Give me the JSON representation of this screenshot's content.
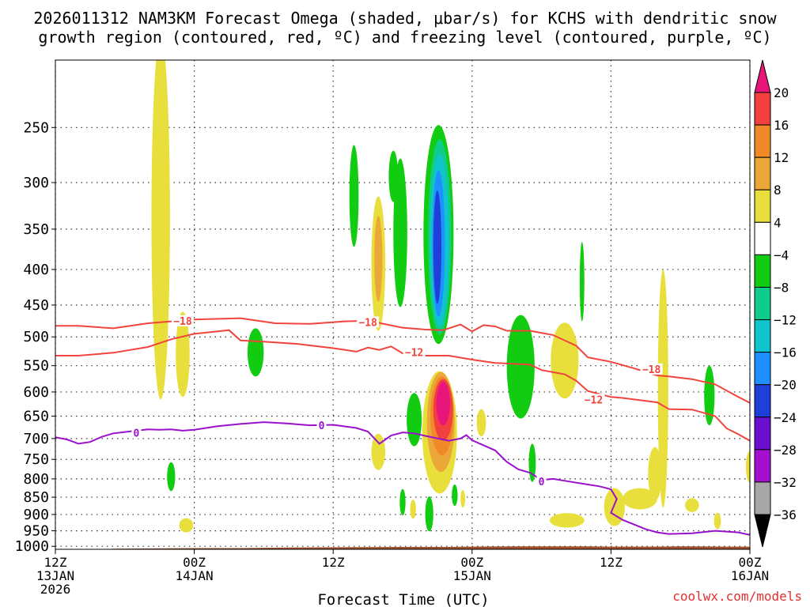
{
  "chart_data": {
    "type": "heatmap",
    "title_lines": [
      "2026011312 NAM3KM Forecast Omega (shaded, μbar/s) for KCHS with dendritic snow",
      "growth region (contoured, red, ºC) and freezing level (contoured, purple, ºC)"
    ],
    "xlabel": "Forecast Time (UTC)",
    "ylabel": "",
    "x_forecast_hours": [
      0,
      60
    ],
    "y_pressure_hPa": [
      1010,
      200
    ],
    "yticks": [
      250,
      300,
      350,
      400,
      450,
      500,
      550,
      600,
      650,
      700,
      750,
      800,
      850,
      900,
      950,
      1000
    ],
    "xticks": [
      {
        "hour": 0,
        "lines": [
          "12Z",
          "13JAN",
          "2026"
        ]
      },
      {
        "hour": 12,
        "lines": [
          "00Z",
          "14JAN"
        ]
      },
      {
        "hour": 24,
        "lines": [
          "12Z"
        ]
      },
      {
        "hour": 36,
        "lines": [
          "00Z",
          "15JAN"
        ]
      },
      {
        "hour": 48,
        "lines": [
          "12Z"
        ]
      },
      {
        "hour": 60,
        "lines": [
          "00Z",
          "16JAN"
        ]
      }
    ],
    "colorbar": {
      "levels": [
        "20",
        "16",
        "12",
        "8",
        "4",
        "−4",
        "−8",
        "−12",
        "−16",
        "−20",
        "−24",
        "−28",
        "−32",
        "−36"
      ],
      "colors": [
        "#e8157a",
        "#f24040",
        "#f08a28",
        "#eba838",
        "#e8df3c",
        "#ffffff",
        "#11cc11",
        "#0fcc8a",
        "#0fc4cc",
        "#1e90ff",
        "#1f3fd9",
        "#6a0fd0",
        "#a40fd0",
        "#a8a8a8",
        "#000000"
      ]
    },
    "contours": [
      {
        "name": "dgz-minus18",
        "color": "#f0443c",
        "label": "−18",
        "points": [
          [
            0,
            482
          ],
          [
            2,
            482
          ],
          [
            5,
            486
          ],
          [
            8,
            478
          ],
          [
            12,
            472
          ],
          [
            16,
            470
          ],
          [
            19,
            478
          ],
          [
            22,
            479
          ],
          [
            25,
            475
          ],
          [
            27,
            474
          ],
          [
            30,
            485
          ],
          [
            32,
            488
          ],
          [
            33.5,
            489
          ],
          [
            35,
            480
          ],
          [
            36,
            491
          ],
          [
            37,
            481
          ],
          [
            38,
            483
          ],
          [
            39,
            490
          ],
          [
            41,
            490
          ],
          [
            43,
            497
          ],
          [
            45,
            515
          ],
          [
            46,
            535
          ],
          [
            48,
            543
          ],
          [
            50,
            555
          ],
          [
            52,
            568
          ],
          [
            53,
            570
          ],
          [
            55,
            575
          ],
          [
            57,
            585
          ],
          [
            59,
            610
          ],
          [
            60,
            622
          ]
        ],
        "label_at": [
          [
            11,
            474
          ],
          [
            27,
            476
          ],
          [
            51.5,
            556
          ]
        ]
      },
      {
        "name": "dgz-minus12",
        "color": "#f0443c",
        "label": "−12",
        "points": [
          [
            0,
            532
          ],
          [
            2,
            532
          ],
          [
            5,
            527
          ],
          [
            8,
            517
          ],
          [
            10,
            504
          ],
          [
            12,
            495
          ],
          [
            15,
            489
          ],
          [
            16,
            506
          ],
          [
            18,
            508
          ],
          [
            21,
            512
          ],
          [
            24,
            519
          ],
          [
            26,
            525
          ],
          [
            27,
            518
          ],
          [
            28,
            522
          ],
          [
            29,
            516
          ],
          [
            30,
            528
          ],
          [
            31,
            524
          ],
          [
            32,
            532
          ],
          [
            34,
            532
          ],
          [
            36,
            539
          ],
          [
            38,
            545
          ],
          [
            41,
            548
          ],
          [
            42,
            558
          ],
          [
            44,
            566
          ],
          [
            45,
            578
          ],
          [
            46,
            598
          ],
          [
            48,
            610
          ],
          [
            49,
            612
          ],
          [
            50,
            615
          ],
          [
            51,
            618
          ],
          [
            52,
            621
          ],
          [
            53,
            635
          ],
          [
            55,
            636
          ],
          [
            57,
            650
          ],
          [
            58,
            677
          ],
          [
            59,
            690
          ],
          [
            60,
            705
          ]
        ],
        "label_at": [
          [
            31,
            526
          ],
          [
            46.5,
            615
          ]
        ]
      },
      {
        "name": "freezing-level-0",
        "color": "#9911cc",
        "label": "0",
        "points": [
          [
            0,
            697
          ],
          [
            1,
            702
          ],
          [
            2,
            712
          ],
          [
            3,
            708
          ],
          [
            4,
            696
          ],
          [
            5,
            688
          ],
          [
            6,
            685
          ],
          [
            7,
            682
          ],
          [
            8,
            679
          ],
          [
            9,
            680
          ],
          [
            10,
            679
          ],
          [
            11,
            682
          ],
          [
            12,
            680
          ],
          [
            14,
            672
          ],
          [
            16,
            667
          ],
          [
            18,
            663
          ],
          [
            20,
            666
          ],
          [
            22,
            670
          ],
          [
            24,
            669
          ],
          [
            26,
            676
          ],
          [
            27,
            684
          ],
          [
            28,
            712
          ],
          [
            29,
            693
          ],
          [
            30,
            686
          ],
          [
            31,
            688
          ],
          [
            32,
            694
          ],
          [
            34,
            705
          ],
          [
            35,
            700
          ],
          [
            35.5,
            692
          ],
          [
            36,
            704
          ],
          [
            38,
            728
          ],
          [
            39,
            756
          ],
          [
            40,
            775
          ],
          [
            41,
            784
          ],
          [
            42,
            803
          ],
          [
            43,
            800
          ],
          [
            44,
            805
          ],
          [
            46,
            815
          ],
          [
            47,
            820
          ],
          [
            48,
            828
          ],
          [
            48.5,
            855
          ],
          [
            48,
            895
          ],
          [
            49,
            916
          ],
          [
            51,
            945
          ],
          [
            52,
            955
          ],
          [
            53,
            960
          ],
          [
            55,
            958
          ],
          [
            57,
            950
          ],
          [
            59,
            955
          ],
          [
            60,
            963
          ]
        ],
        "label_at": [
          [
            7,
            687
          ],
          [
            23,
            670
          ],
          [
            42,
            806
          ]
        ]
      }
    ],
    "shaded_regions": [
      {
        "id": "y1",
        "level": "4-8",
        "color": "#e8df3c",
        "cx": 9.1,
        "cy": 400,
        "rx": 0.8,
        "ry": 215
      },
      {
        "id": "y2",
        "level": "4-8",
        "color": "#e8df3c",
        "cx": 11.0,
        "cy": 535,
        "rx": 0.6,
        "ry": 75
      },
      {
        "id": "y3",
        "level": "4-8",
        "color": "#e8df3c",
        "cx": 11.3,
        "cy": 933,
        "rx": 0.6,
        "ry": 22
      },
      {
        "id": "g1",
        "level": "-4--8",
        "color": "#11cc11",
        "cx": 10.0,
        "cy": 795,
        "rx": 0.35,
        "ry": 38
      },
      {
        "id": "g2",
        "level": "-4--8",
        "color": "#11cc11",
        "cx": 17.3,
        "cy": 528,
        "rx": 0.7,
        "ry": 42
      },
      {
        "id": "g3",
        "level": "-4--8",
        "color": "#11cc11",
        "cx": 25.8,
        "cy": 318,
        "rx": 0.4,
        "ry": 53
      },
      {
        "id": "y4",
        "level": "4-8",
        "color": "#e8df3c",
        "cx": 27.9,
        "cy": 402,
        "rx": 0.6,
        "ry": 88
      },
      {
        "id": "o1",
        "level": "8-12",
        "color": "#eba838",
        "cx": 27.9,
        "cy": 390,
        "rx": 0.35,
        "ry": 55
      },
      {
        "id": "y5",
        "level": "4-8",
        "color": "#e8df3c",
        "cx": 27.9,
        "cy": 733,
        "rx": 0.6,
        "ry": 44
      },
      {
        "id": "g4",
        "level": "-4--8",
        "color": "#11cc11",
        "cx": 29.2,
        "cy": 295,
        "rx": 0.4,
        "ry": 25
      },
      {
        "id": "g5",
        "level": "-4--8",
        "color": "#11cc11",
        "cx": 29.8,
        "cy": 365,
        "rx": 0.6,
        "ry": 88
      },
      {
        "id": "g6",
        "level": "-4--8",
        "color": "#11cc11",
        "cx": 30.0,
        "cy": 865,
        "rx": 0.25,
        "ry": 38
      },
      {
        "id": "y6",
        "level": "4-8",
        "color": "#e8df3c",
        "cx": 30.9,
        "cy": 885,
        "rx": 0.25,
        "ry": 28
      },
      {
        "id": "g7",
        "level": "-4--8",
        "color": "#11cc11",
        "cx": 31.0,
        "cy": 660,
        "rx": 0.65,
        "ry": 58
      },
      {
        "id": "g8",
        "level": "-4--8",
        "color": "#11cc11",
        "cx": 32.3,
        "cy": 900,
        "rx": 0.35,
        "ry": 52
      },
      {
        "id": "g9",
        "level": "-4--8",
        "color": "#11cc11",
        "cx": 33.1,
        "cy": 380,
        "rx": 1.3,
        "ry": 132
      },
      {
        "id": "t1",
        "level": "-8--12",
        "color": "#0fcc8a",
        "cx": 33.2,
        "cy": 378,
        "rx": 1.0,
        "ry": 118
      },
      {
        "id": "c1",
        "level": "-12--16",
        "color": "#0fc4cc",
        "cx": 33.2,
        "cy": 378,
        "rx": 0.8,
        "ry": 105
      },
      {
        "id": "b1",
        "level": "-16--20",
        "color": "#1e90ff",
        "cx": 33.1,
        "cy": 378,
        "rx": 0.55,
        "ry": 90
      },
      {
        "id": "b2",
        "level": "-20--24",
        "color": "#1f3fd9",
        "cx": 33.0,
        "cy": 378,
        "rx": 0.35,
        "ry": 70
      },
      {
        "id": "y7",
        "level": "4-8",
        "color": "#e8df3c",
        "cx": 33.2,
        "cy": 700,
        "rx": 1.5,
        "ry": 140
      },
      {
        "id": "o2",
        "level": "8-12",
        "color": "#eba838",
        "cx": 33.3,
        "cy": 672,
        "rx": 1.2,
        "ry": 110
      },
      {
        "id": "o3",
        "level": "12-16",
        "color": "#f08a28",
        "cx": 33.4,
        "cy": 655,
        "rx": 1.0,
        "ry": 85
      },
      {
        "id": "r1",
        "level": "16-20",
        "color": "#f24040",
        "cx": 33.5,
        "cy": 640,
        "rx": 0.85,
        "ry": 65
      },
      {
        "id": "p1",
        "level": ">20",
        "color": "#e8157a",
        "cx": 33.5,
        "cy": 625,
        "rx": 0.6,
        "ry": 45
      },
      {
        "id": "g10",
        "level": "-4--8",
        "color": "#11cc11",
        "cx": 34.5,
        "cy": 845,
        "rx": 0.25,
        "ry": 30
      },
      {
        "id": "y8",
        "level": "4-8",
        "color": "#e8df3c",
        "cx": 35.2,
        "cy": 855,
        "rx": 0.2,
        "ry": 25
      },
      {
        "id": "y9",
        "level": "4-8",
        "color": "#e8df3c",
        "cx": 36.8,
        "cy": 665,
        "rx": 0.4,
        "ry": 30
      },
      {
        "id": "g11",
        "level": "-4--8",
        "color": "#11cc11",
        "cx": 40.2,
        "cy": 560,
        "rx": 1.2,
        "ry": 95
      },
      {
        "id": "g12",
        "level": "-4--8",
        "color": "#11cc11",
        "cx": 41.2,
        "cy": 760,
        "rx": 0.3,
        "ry": 48
      },
      {
        "id": "y10",
        "level": "4-8",
        "color": "#e8df3c",
        "cx": 44.0,
        "cy": 545,
        "rx": 1.2,
        "ry": 68
      },
      {
        "id": "y11",
        "level": "4-8",
        "color": "#e8df3c",
        "cx": 44.2,
        "cy": 918,
        "rx": 1.5,
        "ry": 22
      },
      {
        "id": "g13",
        "level": "-4--8",
        "color": "#11cc11",
        "cx": 45.5,
        "cy": 420,
        "rx": 0.2,
        "ry": 55
      },
      {
        "id": "y12",
        "level": "4-8",
        "color": "#e8df3c",
        "cx": 48.3,
        "cy": 880,
        "rx": 0.9,
        "ry": 55
      },
      {
        "id": "y13",
        "level": "4-8",
        "color": "#e8df3c",
        "cx": 50.5,
        "cy": 855,
        "rx": 1.5,
        "ry": 30
      },
      {
        "id": "y14",
        "level": "4-8",
        "color": "#e8df3c",
        "cx": 51.8,
        "cy": 790,
        "rx": 0.6,
        "ry": 70
      },
      {
        "id": "y15",
        "level": "4-8",
        "color": "#e8df3c",
        "cx": 52.5,
        "cy": 640,
        "rx": 0.45,
        "ry": 240
      },
      {
        "id": "y16",
        "level": "4-8",
        "color": "#e8df3c",
        "cx": 55.0,
        "cy": 873,
        "rx": 0.6,
        "ry": 20
      },
      {
        "id": "g14",
        "level": "-4--8",
        "color": "#11cc11",
        "cx": 56.5,
        "cy": 610,
        "rx": 0.45,
        "ry": 60
      },
      {
        "id": "y17",
        "level": "4-8",
        "color": "#e8df3c",
        "cx": 57.2,
        "cy": 920,
        "rx": 0.3,
        "ry": 25
      },
      {
        "id": "y18",
        "level": "4-8",
        "color": "#e8df3c",
        "cx": 60.0,
        "cy": 770,
        "rx": 0.35,
        "ry": 40
      }
    ],
    "terrain": {
      "color": "#a0522d",
      "surface_pressure": [
        [
          0,
          1011
        ],
        [
          4,
          1011
        ],
        [
          5,
          1008
        ],
        [
          12,
          1006
        ],
        [
          16,
          1006
        ],
        [
          20,
          1004
        ],
        [
          26,
          1003
        ],
        [
          30,
          1002
        ],
        [
          34,
          1002
        ],
        [
          36,
          1001
        ],
        [
          40,
          1000
        ],
        [
          46,
          1000
        ],
        [
          48,
          1001
        ],
        [
          52,
          1001
        ],
        [
          54,
          1000
        ],
        [
          58,
          1001
        ],
        [
          60,
          1001
        ]
      ]
    }
  },
  "credit": "coolwx.com/models"
}
